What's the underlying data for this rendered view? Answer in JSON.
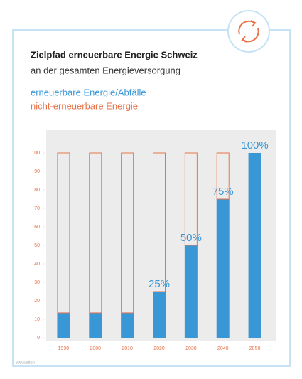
{
  "chart_data": {
    "type": "stacked-bar",
    "title": "Zielpfad erneuerbare Energie Schweiz",
    "subtitle": "an der gesamten Energieversorgung",
    "categories": [
      "1990",
      "2000",
      "2010",
      "2020",
      "2030",
      "2040",
      "2050"
    ],
    "series": [
      {
        "name": "erneuerbare Energie/Abfälle",
        "color": "#3a97d6",
        "values": [
          13.5,
          13.5,
          13.5,
          25,
          50,
          75,
          100
        ],
        "value_labels": [
          null,
          null,
          null,
          "25%",
          "50%",
          "75%",
          "100%"
        ]
      },
      {
        "name": "nicht-erneuerbare Energie",
        "color": "#e8734a",
        "values": [
          86.5,
          86.5,
          86.5,
          75,
          50,
          25,
          0
        ]
      }
    ],
    "ylim": [
      0,
      113
    ],
    "yticks": [
      0,
      10,
      20,
      30,
      40,
      50,
      60,
      70,
      80,
      90,
      100
    ],
    "source": "2000watt.ch"
  }
}
